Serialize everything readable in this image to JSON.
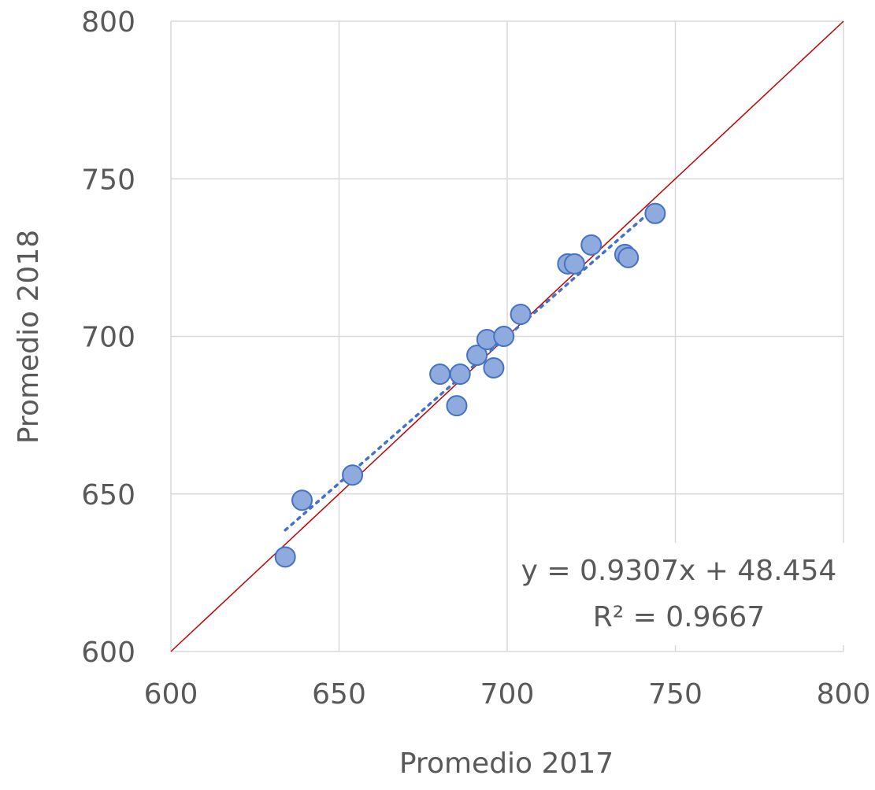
{
  "chart_data": {
    "type": "scatter",
    "xlabel": "Promedio 2017",
    "ylabel": "Promedio 2018",
    "xlim": [
      600,
      800
    ],
    "ylim": [
      600,
      800
    ],
    "xticks": [
      "600",
      "650",
      "700",
      "750",
      "800"
    ],
    "yticks": [
      "600",
      "650",
      "700",
      "750",
      "800"
    ],
    "grid": true,
    "series": [
      {
        "points": [
          {
            "x": 634,
            "y": 630
          },
          {
            "x": 639,
            "y": 648
          },
          {
            "x": 654,
            "y": 656
          },
          {
            "x": 680,
            "y": 688
          },
          {
            "x": 685,
            "y": 678
          },
          {
            "x": 686,
            "y": 688
          },
          {
            "x": 691,
            "y": 694
          },
          {
            "x": 694,
            "y": 699
          },
          {
            "x": 696,
            "y": 690
          },
          {
            "x": 699,
            "y": 700
          },
          {
            "x": 704,
            "y": 707
          },
          {
            "x": 718,
            "y": 723
          },
          {
            "x": 720,
            "y": 723
          },
          {
            "x": 725,
            "y": 729
          },
          {
            "x": 735,
            "y": 726
          },
          {
            "x": 736,
            "y": 725
          },
          {
            "x": 744,
            "y": 739
          }
        ],
        "marker_fill": "#8faadc",
        "marker_stroke": "#4472c4"
      }
    ],
    "trendline": {
      "slope": 0.9307,
      "intercept": 48.454,
      "x_range": [
        634,
        744
      ],
      "color": "#4472c4",
      "style": "dotted"
    },
    "reference_line": {
      "description": "y = x",
      "color": "#c00000"
    },
    "annotations": {
      "equation": "y = 0.9307x + 48.454",
      "r_squared": "R² = 0.9667"
    }
  }
}
